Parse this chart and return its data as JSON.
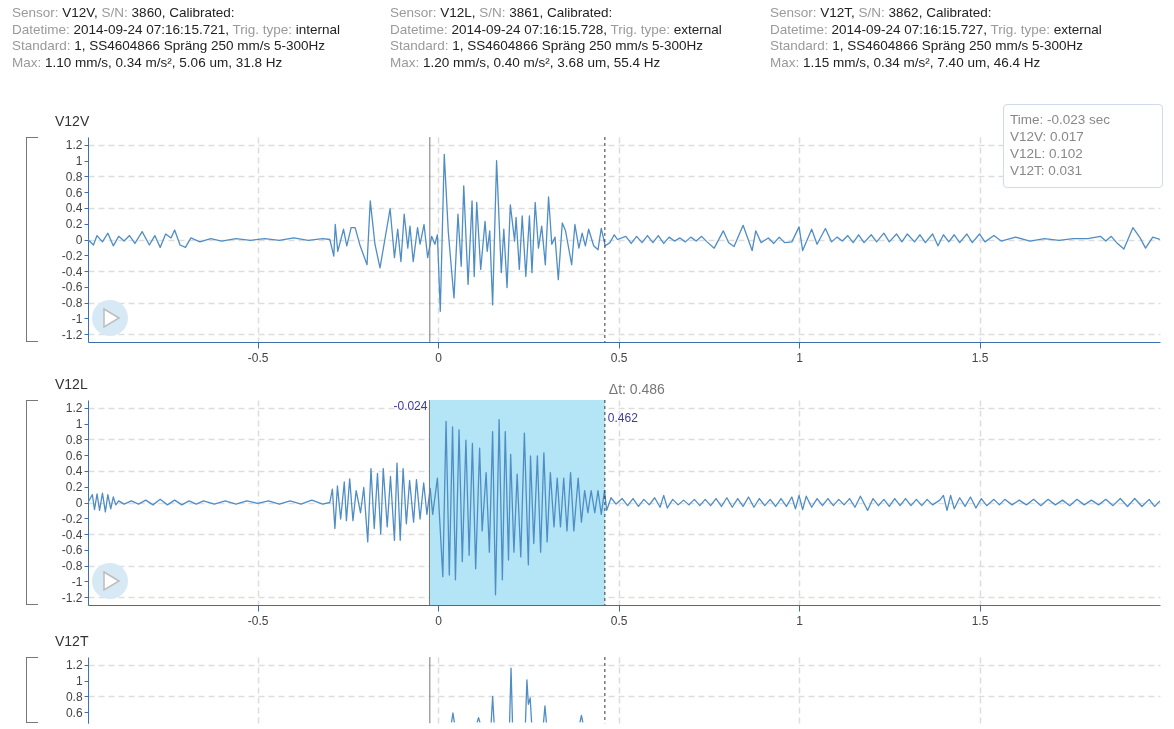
{
  "chart_data": [
    {
      "type": "line",
      "title": "V12V",
      "annotations": [
        "Sensor: V12V, S/N: 3860, Calibrated:",
        "Datetime: 2014-09-24 07:16:15.721, Trig. type: internal",
        "Standard: 1, SS4604866 Spräng 250 mm/s 5-300Hz",
        "Max: 1.10 mm/s, 0.34 m/s², 5.06 um, 31.8 Hz",
        "Sensor: V12L, S/N: 3861, Calibrated:",
        "Datetime: 2014-09-24 07:16:15.728, Trig. type: external",
        "Standard: 1, SS4604866 Spräng 250 mm/s 5-300Hz",
        "Max: 1.20 mm/s, 0.40 m/s², 3.68 um, 55.4 Hz",
        "Sensor: V12T, S/N: 3862, Calibrated:",
        "Datetime: 2014-09-24 07:16:15.727, Trig. type: external",
        "Standard: 1, SS4604866 Spräng 250 mm/s 5-300Hz",
        "Max: 1.15 mm/s, 0.34 m/s², 7.40 um, 46.4 Hz",
        "Time: -0.023 sec",
        "V12V: 0.017",
        "V12L: 0.102",
        "V12T: 0.031"
      ],
      "xlim": [
        -0.97,
        2.0
      ],
      "xticks": [
        -0.5,
        0,
        0.5,
        1,
        1.5
      ],
      "ylim": [
        -1.3,
        1.3
      ],
      "yticks": [
        -1.2,
        -1,
        -0.8,
        -0.6,
        -0.4,
        -0.2,
        0,
        0.2,
        0.4,
        0.6,
        0.8,
        1,
        1.2
      ],
      "grid": true,
      "ref_lines": [
        {
          "axis": "x",
          "value": -0.023,
          "color": "#777777",
          "line_style": "solid"
        },
        {
          "axis": "x",
          "value": 0.462,
          "color": "#333333",
          "line_style": "dashed"
        }
      ],
      "series": [
        {
          "color": "#4f8dc5",
          "x": [
            -0.97,
            -0.955,
            -0.945,
            -0.93,
            -0.915,
            -0.9,
            -0.885,
            -0.87,
            -0.855,
            -0.84,
            -0.82,
            -0.8,
            -0.785,
            -0.77,
            -0.755,
            -0.74,
            -0.73,
            -0.715,
            -0.7,
            -0.685,
            -0.66,
            -0.63,
            -0.6,
            -0.56,
            -0.52,
            -0.48,
            -0.44,
            -0.4,
            -0.36,
            -0.32,
            -0.3,
            -0.289,
            -0.285,
            -0.278,
            -0.262,
            -0.253,
            -0.241,
            -0.23,
            -0.216,
            -0.197,
            -0.188,
            -0.175,
            -0.161,
            -0.133,
            -0.121,
            -0.112,
            -0.103,
            -0.094,
            -0.084,
            -0.078,
            -0.069,
            -0.057,
            -0.05,
            -0.039,
            -0.029,
            -0.018,
            -0.009,
            -0.002,
            0.006,
            0.017,
            0.028,
            0.037,
            0.044,
            0.055,
            0.064,
            0.071,
            0.083,
            0.094,
            0.1,
            0.107,
            0.118,
            0.13,
            0.136,
            0.143,
            0.151,
            0.162,
            0.175,
            0.182,
            0.191,
            0.2,
            0.212,
            0.216,
            0.225,
            0.233,
            0.243,
            0.253,
            0.26,
            0.269,
            0.278,
            0.287,
            0.297,
            0.306,
            0.315,
            0.324,
            0.333,
            0.344,
            0.353,
            0.37,
            0.379,
            0.39,
            0.399,
            0.408,
            0.417,
            0.431,
            0.443,
            0.452,
            0.463,
            0.476,
            0.488,
            0.497,
            0.52,
            0.535,
            0.55,
            0.565,
            0.58,
            0.595,
            0.61,
            0.625,
            0.64,
            0.655,
            0.67,
            0.685,
            0.7,
            0.715,
            0.73,
            0.745,
            0.765,
            0.79,
            0.805,
            0.82,
            0.845,
            0.87,
            0.88,
            0.895,
            0.915,
            0.93,
            0.945,
            0.96,
            0.98,
            1.0,
            1.01,
            1.035,
            1.05,
            1.073,
            1.09,
            1.105,
            1.12,
            1.135,
            1.15,
            1.165,
            1.18,
            1.2,
            1.215,
            1.235,
            1.25,
            1.27,
            1.285,
            1.3,
            1.32,
            1.335,
            1.35,
            1.37,
            1.385,
            1.4,
            1.415,
            1.43,
            1.445,
            1.465,
            1.48,
            1.5,
            1.515,
            1.54,
            1.56,
            1.6,
            1.64,
            1.68,
            1.72,
            1.76,
            1.8,
            1.835,
            1.85,
            1.865,
            1.88,
            1.9,
            1.925,
            1.945,
            1.96,
            1.98,
            2.0
          ],
          "values": [
            0,
            -0.07,
            0.05,
            -0.03,
            0.08,
            -0.08,
            0.04,
            -0.02,
            0.05,
            -0.05,
            0.1,
            -0.07,
            0.05,
            -0.1,
            0.07,
            0.02,
            0.12,
            -0.07,
            -0.1,
            0.02,
            -0.03,
            0.01,
            -0.02,
            0.01,
            -0.01,
            0.01,
            -0.01,
            0.02,
            -0.01,
            0.01,
            0,
            -0.21,
            0.19,
            -0.15,
            0.13,
            -0.08,
            0.15,
            0.15,
            -0.08,
            -0.32,
            0.49,
            -0.06,
            -0.36,
            0.39,
            -0.23,
            0.13,
            -0.28,
            0.32,
            -0.11,
            0.17,
            -0.28,
            0.15,
            -0.06,
            0.19,
            -0.23,
            0.04,
            -0.06,
            0.06,
            -0.91,
            1.08,
            0.11,
            -0.38,
            -0.74,
            0.32,
            -0.34,
            0.68,
            -0.57,
            0.49,
            -0.47,
            0.47,
            -0.38,
            0.23,
            -0.15,
            0.11,
            -0.83,
            1.0,
            -0.42,
            0.13,
            -0.61,
            0.44,
            -0.02,
            0.28,
            -0.38,
            0.3,
            -0.47,
            0.3,
            -0.42,
            0.47,
            -0.11,
            0.17,
            -0.32,
            0.54,
            -0.06,
            0.03,
            -0.51,
            0.21,
            0.11,
            -0.32,
            0.19,
            -0.11,
            0.08,
            -0.08,
            0.13,
            -0.08,
            -0.13,
            0.14,
            -0.08,
            -0.04,
            0.06,
            0,
            0.04,
            -0.05,
            0.04,
            -0.04,
            0.05,
            -0.04,
            0.05,
            -0.05,
            0.03,
            -0.02,
            0.02,
            -0.03,
            0.03,
            -0.02,
            0.04,
            -0.03,
            -0.11,
            0.11,
            -0.04,
            -0.09,
            0.18,
            -0.14,
            0.11,
            -0.04,
            0.02,
            -0.05,
            0.03,
            -0.04,
            -0.03,
            0.16,
            -0.14,
            0.13,
            -0.06,
            0.14,
            -0.03,
            0.03,
            -0.02,
            0.05,
            -0.04,
            0.06,
            -0.04,
            0.06,
            -0.03,
            0.08,
            -0.03,
            0.07,
            -0.03,
            0.07,
            -0.03,
            0.06,
            -0.04,
            0.07,
            -0.08,
            0.06,
            -0.03,
            0.06,
            -0.04,
            0.07,
            -0.04,
            0.07,
            -0.03,
            0.05,
            -0.02,
            0.03,
            -0.02,
            0.01,
            -0.01,
            0.01,
            0.01,
            0.04,
            -0.02,
            0.04,
            -0.04,
            -0.12,
            0.15,
            0.02,
            -0.11,
            0.03,
            0
          ]
        }
      ]
    },
    {
      "type": "line",
      "title": "V12L",
      "annotations": [
        "Δt: 0.486"
      ],
      "xlim": [
        -0.97,
        2.0
      ],
      "xticks": [
        -0.5,
        0,
        0.5,
        1,
        1.5
      ],
      "ylim": [
        -1.3,
        1.3
      ],
      "yticks": [
        -1.2,
        -1,
        -0.8,
        -0.6,
        -0.4,
        -0.2,
        0,
        0.2,
        0.4,
        0.6,
        0.8,
        1,
        1.2
      ],
      "grid": true,
      "bands": [
        {
          "axis": "x",
          "from": -0.024,
          "to": 0.462,
          "color": "#b3e5f6"
        }
      ],
      "ref_lines": [
        {
          "axis": "x",
          "value": -0.024,
          "label": "-0.024",
          "color": "#777777",
          "line_style": "solid"
        },
        {
          "axis": "x",
          "value": 0.462,
          "label": "0.462",
          "color": "#333333",
          "line_style": "dashed"
        }
      ],
      "series": [
        {
          "color": "#4f8dc5",
          "x": [
            -0.97,
            -0.958,
            -0.952,
            -0.945,
            -0.938,
            -0.93,
            -0.922,
            -0.915,
            -0.907,
            -0.9,
            -0.893,
            -0.885,
            -0.87,
            -0.85,
            -0.83,
            -0.81,
            -0.79,
            -0.77,
            -0.75,
            -0.73,
            -0.71,
            -0.69,
            -0.67,
            -0.65,
            -0.62,
            -0.59,
            -0.56,
            -0.53,
            -0.5,
            -0.47,
            -0.44,
            -0.41,
            -0.38,
            -0.35,
            -0.32,
            -0.3,
            -0.293,
            -0.286,
            -0.279,
            -0.27,
            -0.26,
            -0.254,
            -0.245,
            -0.236,
            -0.227,
            -0.215,
            -0.206,
            -0.195,
            -0.186,
            -0.177,
            -0.168,
            -0.159,
            -0.152,
            -0.141,
            -0.132,
            -0.121,
            -0.114,
            -0.105,
            -0.097,
            -0.088,
            -0.079,
            -0.068,
            -0.06,
            -0.05,
            -0.04,
            -0.031,
            -0.022,
            -0.015,
            -0.002,
            0.013,
            0.022,
            0.031,
            0.04,
            0.048,
            0.058,
            0.067,
            0.077,
            0.086,
            0.095,
            0.104,
            0.115,
            0.122,
            0.133,
            0.142,
            0.151,
            0.159,
            0.169,
            0.178,
            0.186,
            0.195,
            0.201,
            0.21,
            0.219,
            0.229,
            0.239,
            0.25,
            0.256,
            0.265,
            0.275,
            0.284,
            0.293,
            0.302,
            0.311,
            0.321,
            0.33,
            0.339,
            0.348,
            0.357,
            0.367,
            0.376,
            0.388,
            0.397,
            0.406,
            0.415,
            0.424,
            0.434,
            0.443,
            0.452,
            0.461,
            0.467,
            0.479,
            0.493,
            0.51,
            0.525,
            0.54,
            0.555,
            0.57,
            0.585,
            0.6,
            0.615,
            0.625,
            0.635,
            0.65,
            0.665,
            0.68,
            0.695,
            0.71,
            0.725,
            0.74,
            0.755,
            0.77,
            0.785,
            0.8,
            0.815,
            0.83,
            0.845,
            0.86,
            0.875,
            0.89,
            0.905,
            0.92,
            0.935,
            0.95,
            0.965,
            0.98,
            0.99,
            1.0,
            1.01,
            1.02,
            1.035,
            1.05,
            1.065,
            1.08,
            1.095,
            1.11,
            1.125,
            1.14,
            1.155,
            1.17,
            1.19,
            1.205,
            1.22,
            1.235,
            1.25,
            1.265,
            1.28,
            1.295,
            1.31,
            1.325,
            1.34,
            1.355,
            1.37,
            1.39,
            1.4,
            1.41,
            1.42,
            1.43,
            1.445,
            1.46,
            1.475,
            1.49,
            1.505,
            1.52,
            1.54,
            1.555,
            1.57,
            1.59,
            1.61,
            1.63,
            1.65,
            1.67,
            1.69,
            1.71,
            1.73,
            1.75,
            1.77,
            1.79,
            1.81,
            1.83,
            1.85,
            1.87,
            1.89,
            1.91,
            1.93,
            1.95,
            1.97,
            1.985,
            2.0
          ],
          "values": [
            0,
            0.1,
            -0.09,
            0.11,
            -0.1,
            0.12,
            -0.12,
            0.1,
            -0.08,
            0.07,
            -0.03,
            0.02,
            -0.02,
            0.02,
            -0.02,
            0.03,
            -0.03,
            0.04,
            -0.03,
            0.03,
            -0.03,
            0.02,
            -0.02,
            0.02,
            -0.02,
            0.02,
            -0.02,
            0.02,
            -0.01,
            0.02,
            -0.02,
            0.02,
            -0.02,
            0.03,
            -0.02,
            0,
            0.17,
            -0.33,
            0.21,
            -0.21,
            0.26,
            -0.23,
            0.3,
            -0.23,
            0.15,
            -0.13,
            0.19,
            -0.5,
            0.43,
            -0.33,
            0.37,
            -0.4,
            0.43,
            -0.31,
            0.33,
            -0.48,
            0.5,
            -0.48,
            0.43,
            -0.27,
            0.28,
            -0.25,
            0.29,
            -0.21,
            0.25,
            -0.15,
            0.18,
            -0.15,
            0.31,
            -0.94,
            1.03,
            -0.92,
            0.96,
            -0.98,
            0.92,
            -0.75,
            0.79,
            -0.67,
            0.75,
            -0.84,
            0.69,
            -0.36,
            0.38,
            -0.63,
            0.9,
            -1.17,
            1.05,
            -0.98,
            0.9,
            -0.73,
            0.61,
            -0.63,
            0.36,
            -0.69,
            0.88,
            -0.79,
            0.59,
            -0.52,
            0.59,
            -0.63,
            0.63,
            -0.5,
            0.38,
            -0.31,
            0.31,
            -0.31,
            0.31,
            -0.36,
            0.38,
            -0.36,
            0.31,
            -0.25,
            0.15,
            -0.13,
            0.15,
            -0.13,
            0.15,
            -0.15,
            0.15,
            -0.1,
            0.06,
            -0.02,
            0.05,
            -0.04,
            0.05,
            -0.05,
            0.04,
            -0.03,
            0.06,
            -0.06,
            0.09,
            -0.07,
            0.04,
            -0.03,
            0.03,
            -0.03,
            0.04,
            -0.04,
            0.04,
            -0.04,
            0.05,
            -0.05,
            0.06,
            -0.06,
            0.05,
            -0.05,
            0.07,
            -0.06,
            0.05,
            -0.04,
            0.04,
            -0.05,
            0.05,
            -0.05,
            0.07,
            -0.08,
            0.09,
            -0.09,
            0.08,
            -0.06,
            0.05,
            -0.04,
            0.05,
            -0.04,
            0.04,
            -0.03,
            0.05,
            -0.06,
            0.08,
            -0.1,
            0.05,
            -0.04,
            0.04,
            -0.05,
            0.05,
            -0.04,
            0.05,
            -0.04,
            0.04,
            -0.04,
            0.04,
            -0.03,
            0.03,
            0.09,
            -0.1,
            0.09,
            -0.08,
            0.06,
            -0.05,
            0.07,
            -0.07,
            0.05,
            -0.04,
            0.04,
            -0.03,
            0.04,
            -0.03,
            0.03,
            -0.03,
            0.04,
            -0.04,
            0.04,
            -0.03,
            0.03,
            -0.04,
            0.04,
            -0.03,
            0.03,
            -0.03,
            0.04,
            -0.04,
            0.05,
            -0.05,
            0.05,
            -0.05,
            0.04,
            -0.05,
            0.02
          ]
        }
      ]
    },
    {
      "type": "line",
      "title": "V12T",
      "tick_labels": "y",
      "xlim": [
        -0.97,
        2.0
      ],
      "xticks": [
        -0.5,
        0,
        0.5,
        1,
        1.5
      ],
      "ylim": [
        0.46,
        1.3
      ],
      "yticks": [
        0.6,
        0.8,
        1,
        1.2
      ],
      "grid": true,
      "ref_lines": [
        {
          "axis": "x",
          "value": -0.023,
          "color": "#777777",
          "line_style": "solid"
        },
        {
          "axis": "x",
          "value": 0.462,
          "color": "#333333",
          "line_style": "dashed"
        }
      ],
      "series": [
        {
          "color": "#4f8dc5",
          "x": [
            0.037,
            0.041,
            0.045,
            0.1,
            0.108,
            0.112,
            0.116,
            0.13,
            0.147,
            0.151,
            0.155,
            0.17,
            0.198,
            0.202,
            0.206,
            0.22,
            0.242,
            0.246,
            0.25,
            0.255,
            0.259,
            0.27,
            0.292,
            0.296,
            0.3,
            0.33,
            0.393,
            0.397,
            0.401
          ],
          "values": [
            0.47,
            0.59,
            0.47,
            null,
            0.47,
            0.53,
            0.47,
            null,
            0.47,
            0.8,
            0.47,
            null,
            0.47,
            1.16,
            0.47,
            null,
            0.47,
            1.01,
            0.7,
            0.78,
            0.47,
            null,
            0.47,
            0.68,
            0.47,
            null,
            0.47,
            0.56,
            0.47
          ]
        }
      ]
    }
  ]
}
